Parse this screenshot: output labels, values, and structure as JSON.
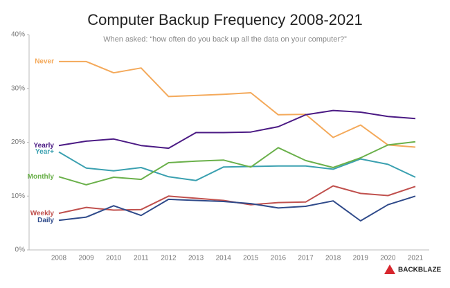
{
  "chart_data": {
    "type": "line",
    "title": "Computer Backup Frequency 2008-2021",
    "subtitle": "When asked: “how often do you back up all the data on your computer?”",
    "brand": "BACKBLAZE",
    "categories": [
      "2008",
      "2009",
      "2010",
      "2011",
      "2012",
      "2013",
      "2014",
      "2015",
      "2016",
      "2017",
      "2018",
      "2019",
      "2020",
      "2021"
    ],
    "ylim": [
      0,
      40
    ],
    "yticks": [
      {
        "value": 0,
        "label": "0%"
      },
      {
        "value": 10,
        "label": "10%"
      },
      {
        "value": 20,
        "label": "20%"
      },
      {
        "value": 30,
        "label": "30%"
      },
      {
        "value": 40,
        "label": "40%"
      }
    ],
    "grid": false,
    "series": [
      {
        "name": "Never",
        "color": "#f4a95a",
        "values": [
          35,
          35,
          32.9,
          33.8,
          28.5,
          28.7,
          28.9,
          29.2,
          25.1,
          25.2,
          20.9,
          23.2,
          19.5,
          19.1
        ]
      },
      {
        "name": "Yearly",
        "color": "#4b1a84",
        "values": [
          19.4,
          20.2,
          20.6,
          19.4,
          18.9,
          21.8,
          21.8,
          21.9,
          22.9,
          25.1,
          25.9,
          25.6,
          24.8,
          24.4
        ]
      },
      {
        "name": "Year+",
        "color": "#3aa0b0",
        "values": [
          18.2,
          15.2,
          14.7,
          15.3,
          13.6,
          12.9,
          15.4,
          15.5,
          15.6,
          15.6,
          15.0,
          16.9,
          15.9,
          13.5
        ]
      },
      {
        "name": "Monthly",
        "color": "#6ab04a",
        "values": [
          13.6,
          12.1,
          13.5,
          13.1,
          16.2,
          16.5,
          16.7,
          15.4,
          19.0,
          16.6,
          15.3,
          17.1,
          19.5,
          20.1
        ]
      },
      {
        "name": "Weekly",
        "color": "#c0504d",
        "values": [
          6.8,
          7.9,
          7.4,
          7.5,
          10.0,
          9.6,
          9.2,
          8.4,
          8.8,
          8.9,
          11.9,
          10.5,
          10.1,
          11.8
        ]
      },
      {
        "name": "Daily",
        "color": "#2f4a8a",
        "values": [
          5.5,
          6.1,
          8.2,
          6.4,
          9.4,
          9.2,
          9.0,
          8.6,
          7.8,
          8.1,
          9.1,
          5.4,
          8.4,
          10.0
        ]
      }
    ]
  }
}
